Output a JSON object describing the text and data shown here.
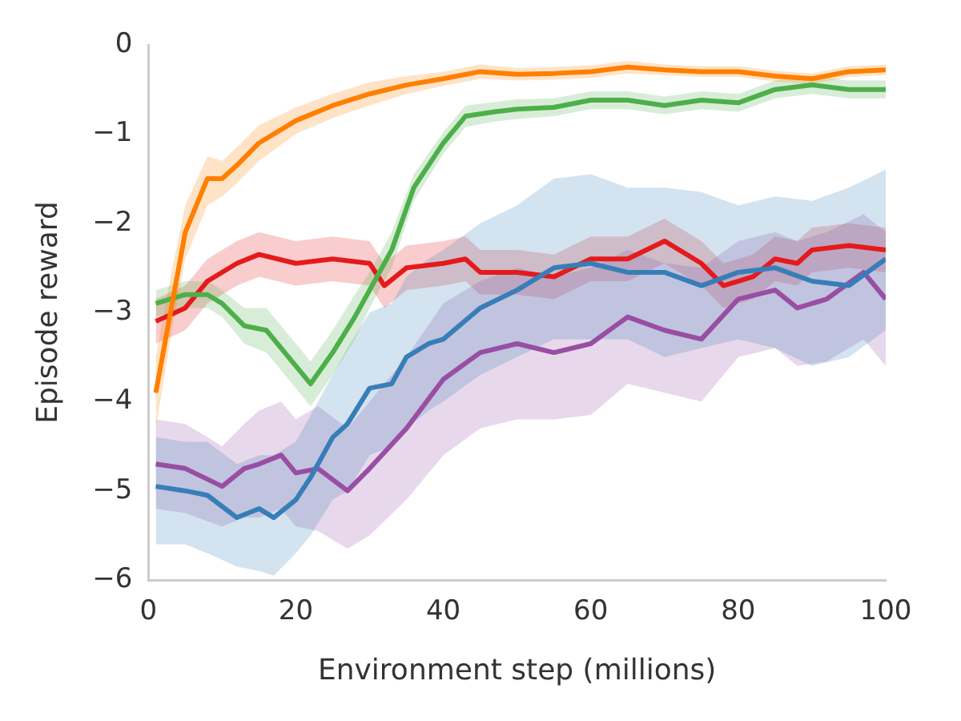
{
  "chart_data": {
    "type": "line",
    "xlabel": "Environment step (millions)",
    "ylabel": "Episode reward",
    "xlim": [
      0,
      100
    ],
    "xticks": [
      0,
      20,
      40,
      60,
      80,
      100
    ],
    "ylim": [
      -6,
      0
    ],
    "yticks": [
      {
        "value": -6,
        "label": "−6"
      },
      {
        "value": -5,
        "label": "−5"
      },
      {
        "value": -4,
        "label": "−4"
      },
      {
        "value": -3,
        "label": "−3"
      },
      {
        "value": -2,
        "label": "−2"
      },
      {
        "value": -1,
        "label": "−1"
      },
      0
    ],
    "grid": false,
    "marker": "none",
    "line_style": "solid",
    "series": [
      {
        "color": "#ff7f00",
        "x": [
          1,
          3,
          5,
          8,
          10,
          12,
          15,
          20,
          25,
          30,
          35,
          40,
          45,
          50,
          55,
          60,
          65,
          70,
          75,
          80,
          85,
          90,
          95,
          100
        ],
        "values": [
          -3.9,
          -3.0,
          -2.1,
          -1.5,
          -1.5,
          -1.35,
          -1.1,
          -0.85,
          -0.68,
          -0.55,
          -0.45,
          -0.38,
          -0.3,
          -0.33,
          -0.32,
          -0.3,
          -0.25,
          -0.28,
          -0.3,
          -0.3,
          -0.35,
          -0.38,
          -0.3,
          -0.28
        ],
        "lower": [
          -4.3,
          -3.3,
          -2.4,
          -1.8,
          -1.7,
          -1.55,
          -1.3,
          -1.0,
          -0.82,
          -0.68,
          -0.55,
          -0.46,
          -0.38,
          -0.4,
          -0.39,
          -0.37,
          -0.32,
          -0.34,
          -0.36,
          -0.36,
          -0.41,
          -0.44,
          -0.36,
          -0.34
        ],
        "upper": [
          -3.5,
          -2.6,
          -1.8,
          -1.25,
          -1.3,
          -1.15,
          -0.9,
          -0.7,
          -0.55,
          -0.42,
          -0.35,
          -0.3,
          -0.22,
          -0.26,
          -0.25,
          -0.23,
          -0.18,
          -0.22,
          -0.24,
          -0.24,
          -0.29,
          -0.32,
          -0.24,
          -0.22
        ]
      },
      {
        "color": "#4daf4a",
        "x": [
          1,
          5,
          8,
          10,
          13,
          16,
          20,
          22,
          25,
          28,
          30,
          33,
          36,
          40,
          43,
          47,
          50,
          55,
          60,
          65,
          70,
          75,
          80,
          85,
          90,
          95,
          100
        ],
        "values": [
          -2.9,
          -2.8,
          -2.8,
          -2.9,
          -3.15,
          -3.2,
          -3.6,
          -3.8,
          -3.45,
          -3.05,
          -2.75,
          -2.3,
          -1.6,
          -1.1,
          -0.8,
          -0.75,
          -0.72,
          -0.7,
          -0.62,
          -0.62,
          -0.68,
          -0.62,
          -0.65,
          -0.5,
          -0.45,
          -0.5,
          -0.5
        ],
        "lower": [
          -3.05,
          -2.95,
          -2.95,
          -3.05,
          -3.35,
          -3.45,
          -3.85,
          -4.05,
          -3.7,
          -3.3,
          -2.95,
          -2.5,
          -1.75,
          -1.22,
          -0.92,
          -0.86,
          -0.83,
          -0.8,
          -0.72,
          -0.72,
          -0.78,
          -0.72,
          -0.75,
          -0.6,
          -0.55,
          -0.6,
          -0.6
        ],
        "upper": [
          -2.75,
          -2.65,
          -2.65,
          -2.75,
          -2.95,
          -2.95,
          -3.35,
          -3.55,
          -3.2,
          -2.8,
          -2.55,
          -2.1,
          -1.45,
          -0.98,
          -0.68,
          -0.64,
          -0.61,
          -0.6,
          -0.52,
          -0.52,
          -0.58,
          -0.52,
          -0.55,
          -0.4,
          -0.35,
          -0.4,
          -0.4
        ]
      },
      {
        "color": "#377eb8",
        "x": [
          1,
          5,
          8,
          12,
          15,
          17,
          20,
          22,
          25,
          27,
          30,
          33,
          35,
          38,
          40,
          45,
          50,
          55,
          60,
          65,
          70,
          75,
          80,
          85,
          90,
          95,
          100
        ],
        "values": [
          -4.95,
          -5.0,
          -5.05,
          -5.3,
          -5.2,
          -5.3,
          -5.1,
          -4.85,
          -4.4,
          -4.25,
          -3.85,
          -3.8,
          -3.5,
          -3.35,
          -3.3,
          -2.95,
          -2.75,
          -2.5,
          -2.45,
          -2.55,
          -2.55,
          -2.7,
          -2.55,
          -2.5,
          -2.65,
          -2.7,
          -2.4
        ],
        "lower": [
          -5.6,
          -5.6,
          -5.7,
          -5.85,
          -5.9,
          -5.95,
          -5.7,
          -5.5,
          -5.1,
          -5.0,
          -4.6,
          -4.5,
          -4.3,
          -4.1,
          -4.0,
          -3.7,
          -3.5,
          -3.3,
          -3.3,
          -3.3,
          -3.5,
          -3.4,
          -3.3,
          -3.4,
          -3.6,
          -3.5,
          -3.2
        ],
        "upper": [
          -4.4,
          -4.45,
          -4.45,
          -4.7,
          -4.6,
          -4.6,
          -4.45,
          -4.15,
          -3.7,
          -3.4,
          -3.0,
          -2.9,
          -2.6,
          -2.4,
          -2.3,
          -2.0,
          -1.8,
          -1.5,
          -1.45,
          -1.6,
          -1.6,
          -1.65,
          -1.8,
          -1.7,
          -1.75,
          -1.6,
          -1.4
        ]
      },
      {
        "color": "#984ea3",
        "x": [
          1,
          5,
          10,
          13,
          15,
          18,
          20,
          23,
          27,
          30,
          35,
          40,
          45,
          50,
          55,
          60,
          65,
          70,
          75,
          80,
          85,
          88,
          92,
          97,
          100
        ],
        "values": [
          -4.7,
          -4.75,
          -4.95,
          -4.75,
          -4.7,
          -4.6,
          -4.8,
          -4.75,
          -5.0,
          -4.75,
          -4.3,
          -3.75,
          -3.45,
          -3.35,
          -3.45,
          -3.35,
          -3.05,
          -3.2,
          -3.3,
          -2.85,
          -2.75,
          -2.95,
          -2.85,
          -2.55,
          -2.85
        ],
        "lower": [
          -5.2,
          -5.25,
          -5.4,
          -5.3,
          -5.3,
          -5.2,
          -5.4,
          -5.45,
          -5.65,
          -5.5,
          -5.1,
          -4.6,
          -4.3,
          -4.2,
          -4.2,
          -4.15,
          -3.8,
          -3.9,
          -4.0,
          -3.5,
          -3.4,
          -3.6,
          -3.55,
          -3.3,
          -3.6
        ],
        "upper": [
          -4.2,
          -4.25,
          -4.5,
          -4.25,
          -4.1,
          -4.0,
          -4.2,
          -4.05,
          -4.3,
          -4.0,
          -3.5,
          -2.9,
          -2.65,
          -2.5,
          -2.6,
          -2.5,
          -2.3,
          -2.45,
          -2.5,
          -2.2,
          -2.1,
          -2.2,
          -2.1,
          -1.9,
          -2.1
        ]
      },
      {
        "color": "#e41a1c",
        "x": [
          1,
          5,
          8,
          12,
          15,
          20,
          25,
          30,
          32,
          35,
          40,
          43,
          45,
          50,
          55,
          60,
          65,
          70,
          75,
          78,
          82,
          85,
          88,
          90,
          95,
          100
        ],
        "values": [
          -3.1,
          -2.95,
          -2.65,
          -2.45,
          -2.35,
          -2.45,
          -2.4,
          -2.45,
          -2.7,
          -2.5,
          -2.45,
          -2.4,
          -2.55,
          -2.55,
          -2.6,
          -2.4,
          -2.4,
          -2.2,
          -2.45,
          -2.7,
          -2.6,
          -2.4,
          -2.45,
          -2.3,
          -2.25,
          -2.3
        ],
        "lower": [
          -3.35,
          -3.2,
          -2.9,
          -2.7,
          -2.6,
          -2.7,
          -2.65,
          -2.7,
          -2.95,
          -2.75,
          -2.7,
          -2.65,
          -2.8,
          -2.8,
          -2.85,
          -2.65,
          -2.65,
          -2.45,
          -2.7,
          -2.95,
          -2.85,
          -2.65,
          -2.7,
          -2.55,
          -2.5,
          -2.55
        ],
        "upper": [
          -2.85,
          -2.7,
          -2.4,
          -2.2,
          -2.1,
          -2.2,
          -2.15,
          -2.2,
          -2.45,
          -2.25,
          -2.2,
          -2.15,
          -2.3,
          -2.3,
          -2.35,
          -2.15,
          -2.15,
          -1.95,
          -2.2,
          -2.45,
          -2.35,
          -2.15,
          -2.2,
          -2.05,
          -2.0,
          -2.05
        ]
      }
    ]
  }
}
